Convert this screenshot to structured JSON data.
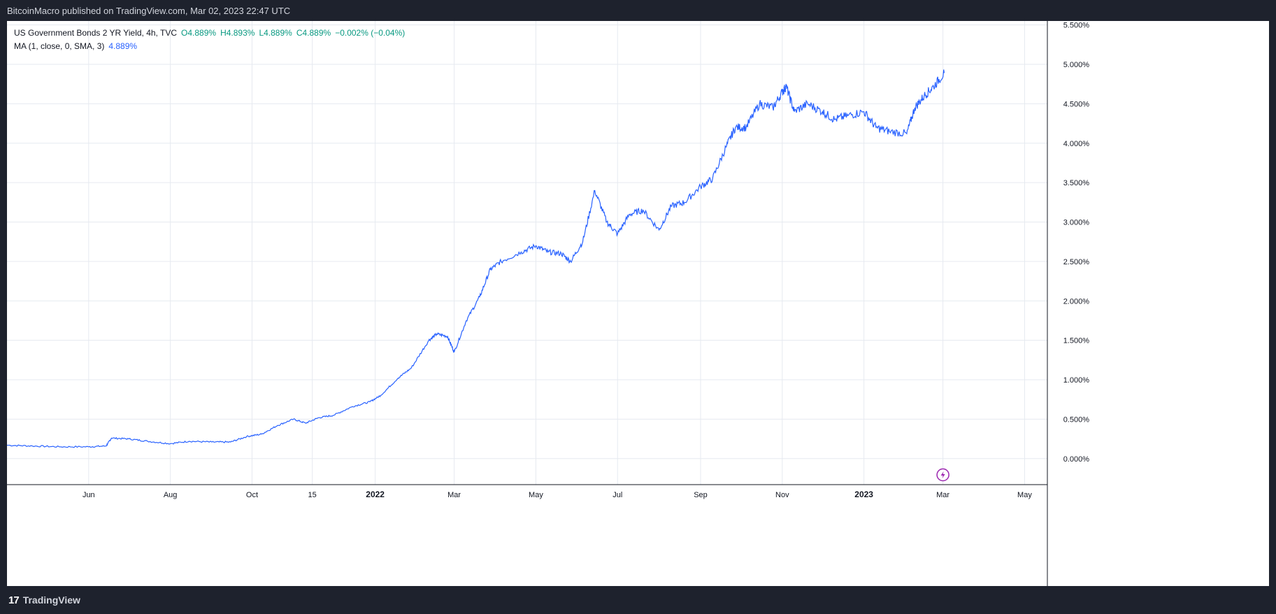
{
  "header": {
    "published_text": "BitcoinMacro published on TradingView.com, Mar 02, 2023 22:47 UTC"
  },
  "legend": {
    "symbol": "US Government Bonds 2 YR Yield, 4h, TVC",
    "open": "O4.889%",
    "high": "H4.893%",
    "low": "L4.889%",
    "close": "C4.889%",
    "change": "−0.002% (−0.04%)",
    "ma_label": "MA (1, close, 0, SMA, 3)",
    "ma_value": "4.889%"
  },
  "footer": {
    "brand": "TradingView",
    "logo_glyph": "17"
  },
  "colors": {
    "line": "#2962ff",
    "grid": "#e6eaf0",
    "up": "#089981",
    "event_marker": "#9c27b0"
  },
  "icons": [
    "lightning-icon",
    "tradingview-logo-icon"
  ],
  "chart_data": {
    "type": "line",
    "title": "US Government Bonds 2 YR Yield, 4h, TVC",
    "xlabel": "",
    "ylabel": "",
    "x_ticks": [
      "Jun",
      "Aug",
      "Oct",
      "15",
      "2022",
      "Mar",
      "May",
      "Jul",
      "Sep",
      "Nov",
      "2023",
      "Mar",
      "May"
    ],
    "y_ticks": [
      "0.000%",
      "0.500%",
      "1.000%",
      "1.500%",
      "2.000%",
      "2.500%",
      "3.000%",
      "3.500%",
      "4.000%",
      "4.500%",
      "5.000%",
      "5.500%"
    ],
    "ylim": [
      -0.33,
      5.55
    ],
    "xlim": [
      "2021-04-01",
      "2023-05-18"
    ],
    "grid": true,
    "series": [
      {
        "name": "US Government Bonds 2 YR Yield",
        "points": [
          [
            "2021-04-01",
            0.17
          ],
          [
            "2021-04-20",
            0.16
          ],
          [
            "2021-05-10",
            0.15
          ],
          [
            "2021-06-01",
            0.15
          ],
          [
            "2021-06-14",
            0.16
          ],
          [
            "2021-06-18",
            0.26
          ],
          [
            "2021-07-01",
            0.25
          ],
          [
            "2021-07-15",
            0.22
          ],
          [
            "2021-08-01",
            0.19
          ],
          [
            "2021-08-15",
            0.22
          ],
          [
            "2021-09-01",
            0.21
          ],
          [
            "2021-09-15",
            0.21
          ],
          [
            "2021-09-27",
            0.28
          ],
          [
            "2021-10-08",
            0.31
          ],
          [
            "2021-10-20",
            0.42
          ],
          [
            "2021-11-01",
            0.5
          ],
          [
            "2021-11-10",
            0.45
          ],
          [
            "2021-11-20",
            0.52
          ],
          [
            "2021-12-01",
            0.55
          ],
          [
            "2021-12-15",
            0.66
          ],
          [
            "2021-12-28",
            0.72
          ],
          [
            "2022-01-05",
            0.8
          ],
          [
            "2022-01-18",
            1.02
          ],
          [
            "2022-01-28",
            1.15
          ],
          [
            "2022-02-10",
            1.5
          ],
          [
            "2022-02-16",
            1.58
          ],
          [
            "2022-02-24",
            1.55
          ],
          [
            "2022-03-01",
            1.35
          ],
          [
            "2022-03-10",
            1.75
          ],
          [
            "2022-03-20",
            2.05
          ],
          [
            "2022-03-28",
            2.4
          ],
          [
            "2022-04-05",
            2.5
          ],
          [
            "2022-04-20",
            2.62
          ],
          [
            "2022-05-01",
            2.7
          ],
          [
            "2022-05-10",
            2.62
          ],
          [
            "2022-05-20",
            2.6
          ],
          [
            "2022-05-27",
            2.5
          ],
          [
            "2022-06-05",
            2.75
          ],
          [
            "2022-06-14",
            3.4
          ],
          [
            "2022-06-23",
            3.0
          ],
          [
            "2022-07-01",
            2.85
          ],
          [
            "2022-07-10",
            3.1
          ],
          [
            "2022-07-20",
            3.15
          ],
          [
            "2022-08-01",
            2.9
          ],
          [
            "2022-08-10",
            3.2
          ],
          [
            "2022-08-20",
            3.25
          ],
          [
            "2022-09-01",
            3.45
          ],
          [
            "2022-09-10",
            3.55
          ],
          [
            "2022-09-20",
            3.95
          ],
          [
            "2022-09-27",
            4.2
          ],
          [
            "2022-10-05",
            4.2
          ],
          [
            "2022-10-15",
            4.5
          ],
          [
            "2022-10-25",
            4.45
          ],
          [
            "2022-11-01",
            4.65
          ],
          [
            "2022-11-04",
            4.72
          ],
          [
            "2022-11-10",
            4.4
          ],
          [
            "2022-11-20",
            4.5
          ],
          [
            "2022-12-01",
            4.4
          ],
          [
            "2022-12-10",
            4.3
          ],
          [
            "2022-12-20",
            4.35
          ],
          [
            "2023-01-01",
            4.4
          ],
          [
            "2023-01-10",
            4.2
          ],
          [
            "2023-01-20",
            4.15
          ],
          [
            "2023-02-02",
            4.12
          ],
          [
            "2023-02-08",
            4.45
          ],
          [
            "2023-02-15",
            4.6
          ],
          [
            "2023-02-22",
            4.72
          ],
          [
            "2023-03-02",
            4.89
          ]
        ]
      }
    ]
  }
}
